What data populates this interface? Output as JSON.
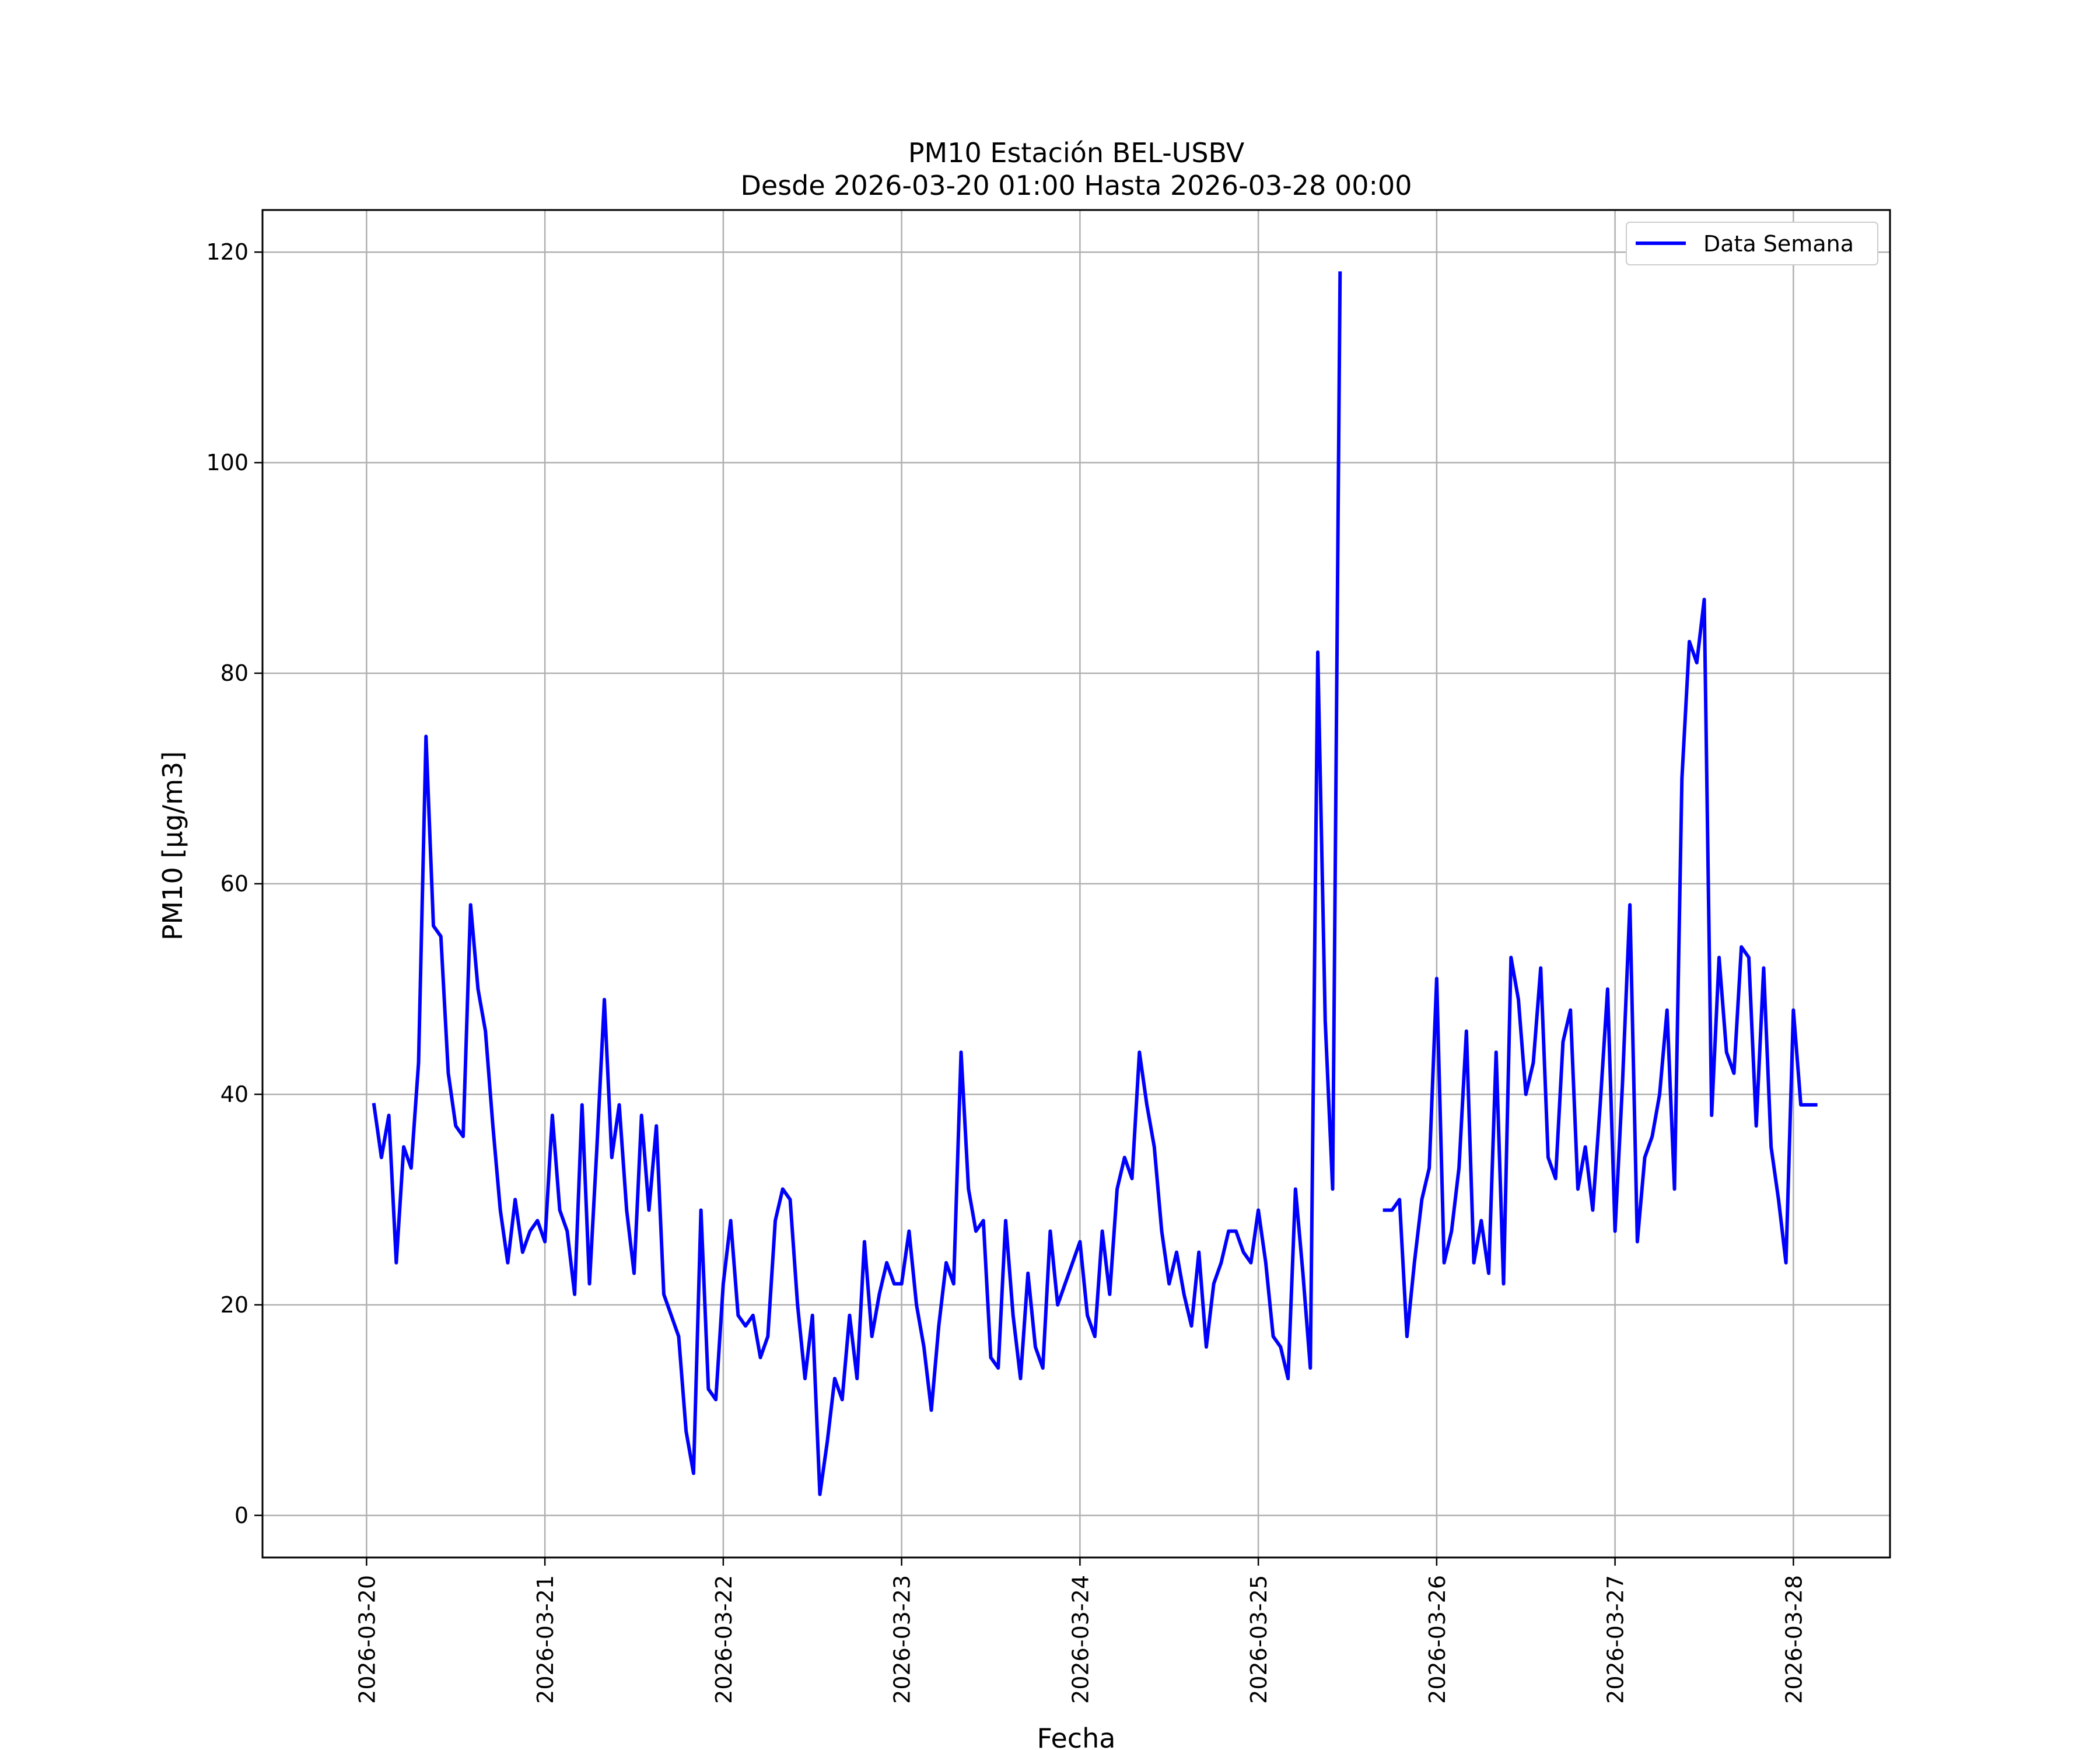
{
  "chart_data": {
    "type": "line",
    "title": "PM10 Estación BEL-USBV",
    "subtitle": "Desde 2026-03-20 01:00 Hasta 2026-03-28 00:00",
    "xlabel": "Fecha",
    "ylabel": "PM10 [μg/m3]",
    "x_ticks": [
      "2026-03-20",
      "2026-03-21",
      "2026-03-22",
      "2026-03-23",
      "2026-03-24",
      "2026-03-25",
      "2026-03-26",
      "2026-03-27",
      "2026-03-28"
    ],
    "y_ticks": [
      0,
      20,
      40,
      60,
      80,
      100,
      120
    ],
    "xlim": [
      "2026-03-19T10:00",
      "2026-03-28T13:00"
    ],
    "ylim": [
      -4,
      124
    ],
    "grid": true,
    "legend_position": "top-right",
    "series": [
      {
        "name": "Data Semana",
        "color": "#0000ff",
        "hours_from_start": 1,
        "step_hours": 1,
        "values": [
          39,
          34,
          38,
          24,
          35,
          33,
          43,
          74,
          56,
          55,
          42,
          37,
          36,
          58,
          50,
          46,
          37,
          29,
          24,
          30,
          25,
          27,
          28,
          26,
          38,
          29,
          27,
          21,
          39,
          22,
          35,
          49,
          34,
          39,
          29,
          23,
          38,
          29,
          37,
          21,
          19,
          17,
          8,
          4,
          29,
          12,
          11,
          22,
          28,
          19,
          18,
          19,
          15,
          17,
          28,
          31,
          30,
          20,
          13,
          19,
          2,
          7,
          13,
          11,
          19,
          13,
          26,
          17,
          21,
          24,
          22,
          22,
          27,
          20,
          16,
          10,
          18,
          24,
          22,
          44,
          31,
          27,
          28,
          15,
          14,
          28,
          19,
          13,
          23,
          16,
          14,
          27,
          20,
          22,
          24,
          26,
          19,
          17,
          27,
          21,
          31,
          34,
          32,
          44,
          39,
          35,
          27,
          22,
          25,
          21,
          18,
          25,
          16,
          22,
          24,
          27,
          27,
          25,
          24,
          29,
          24,
          17,
          16,
          13,
          31,
          23,
          14,
          82,
          47,
          31,
          118,
          null,
          null,
          null,
          null,
          null,
          29,
          29,
          30,
          17,
          24,
          30,
          33,
          51,
          24,
          27,
          33,
          46,
          24,
          28,
          23,
          44,
          22,
          53,
          49,
          40,
          43,
          52,
          34,
          32,
          45,
          48,
          31,
          35,
          29,
          39,
          50,
          27,
          41,
          58,
          26,
          34,
          36,
          40,
          48,
          31,
          70,
          83,
          81,
          87,
          38,
          53,
          44,
          42,
          54,
          53,
          37,
          52,
          35,
          30,
          24,
          48,
          39,
          39,
          39
        ]
      }
    ]
  }
}
